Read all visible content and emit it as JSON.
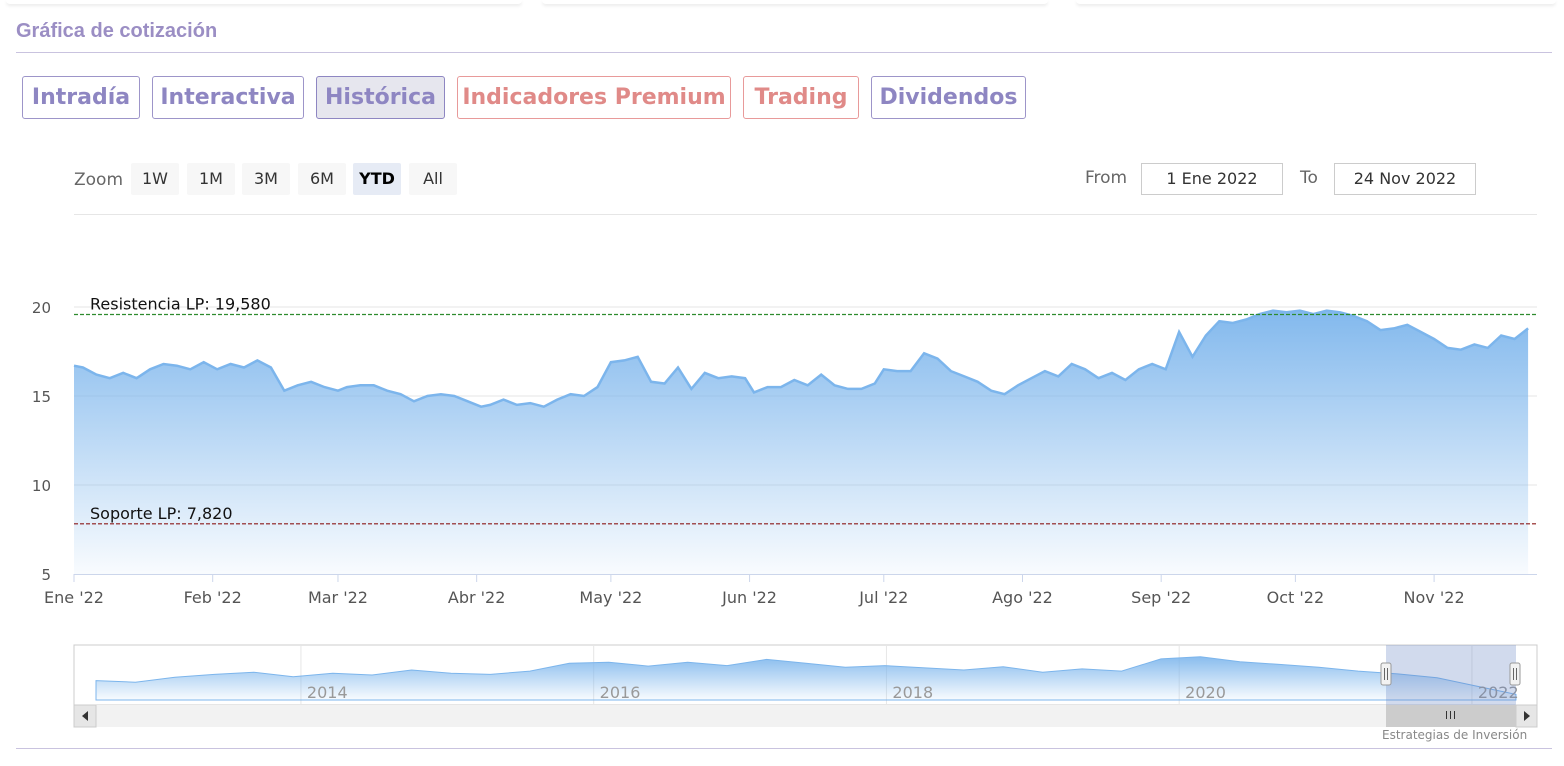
{
  "section_title": "Gráfica de cotización",
  "tabs": [
    {
      "label": "Intradía",
      "style": "normal"
    },
    {
      "label": "Interactiva",
      "style": "normal"
    },
    {
      "label": "Histórica",
      "style": "active"
    },
    {
      "label": "Indicadores Premium",
      "style": "premium"
    },
    {
      "label": "Trading",
      "style": "premium"
    },
    {
      "label": "Dividendos",
      "style": "normal"
    }
  ],
  "range_selector": {
    "zoom_label": "Zoom",
    "buttons": [
      "1W",
      "1M",
      "3M",
      "6M",
      "YTD",
      "All"
    ],
    "selected": "YTD",
    "from_label": "From",
    "from_value": "1 Ene 2022",
    "to_label": "To",
    "to_value": "24 Nov 2022"
  },
  "colors": {
    "accent": "#9b8ec4",
    "premium": "#e08a88",
    "series_line": "#7cb5ec",
    "resistance": "#2e8b2e",
    "support": "#8b1a1a"
  },
  "chart_data": {
    "type": "area",
    "title": "",
    "xlabel": "",
    "ylabel": "",
    "ylim": [
      5,
      20
    ],
    "yticks": [
      5,
      10,
      15,
      20
    ],
    "x_tick_labels": [
      "Ene '22",
      "Feb '22",
      "Mar '22",
      "Abr '22",
      "May '22",
      "Jun '22",
      "Jul '22",
      "Ago '22",
      "Sep '22",
      "Oct '22",
      "Nov '22"
    ],
    "x_range": [
      "2022-01-01",
      "2022-11-24"
    ],
    "grid": true,
    "legend": "none",
    "series": [
      {
        "values": [
          [
            "2022-01-01",
            16.7
          ],
          [
            "2022-01-03",
            16.6
          ],
          [
            "2022-01-06",
            16.2
          ],
          [
            "2022-01-09",
            16.0
          ],
          [
            "2022-01-12",
            16.3
          ],
          [
            "2022-01-15",
            16.0
          ],
          [
            "2022-01-18",
            16.5
          ],
          [
            "2022-01-21",
            16.8
          ],
          [
            "2022-01-24",
            16.7
          ],
          [
            "2022-01-27",
            16.5
          ],
          [
            "2022-01-30",
            16.9
          ],
          [
            "2022-02-02",
            16.5
          ],
          [
            "2022-02-05",
            16.8
          ],
          [
            "2022-02-08",
            16.6
          ],
          [
            "2022-02-11",
            17.0
          ],
          [
            "2022-02-14",
            16.6
          ],
          [
            "2022-02-17",
            15.3
          ],
          [
            "2022-02-20",
            15.6
          ],
          [
            "2022-02-23",
            15.8
          ],
          [
            "2022-02-26",
            15.5
          ],
          [
            "2022-03-01",
            15.3
          ],
          [
            "2022-03-03",
            15.5
          ],
          [
            "2022-03-06",
            15.6
          ],
          [
            "2022-03-09",
            15.6
          ],
          [
            "2022-03-12",
            15.3
          ],
          [
            "2022-03-15",
            15.1
          ],
          [
            "2022-03-18",
            14.7
          ],
          [
            "2022-03-21",
            15.0
          ],
          [
            "2022-03-24",
            15.1
          ],
          [
            "2022-03-27",
            15.0
          ],
          [
            "2022-03-30",
            14.7
          ],
          [
            "2022-04-02",
            14.4
          ],
          [
            "2022-04-04",
            14.5
          ],
          [
            "2022-04-07",
            14.8
          ],
          [
            "2022-04-10",
            14.5
          ],
          [
            "2022-04-13",
            14.6
          ],
          [
            "2022-04-16",
            14.4
          ],
          [
            "2022-04-19",
            14.8
          ],
          [
            "2022-04-22",
            15.1
          ],
          [
            "2022-04-25",
            15.0
          ],
          [
            "2022-04-28",
            15.5
          ],
          [
            "2022-05-01",
            16.9
          ],
          [
            "2022-05-04",
            17.0
          ],
          [
            "2022-05-07",
            17.2
          ],
          [
            "2022-05-10",
            15.8
          ],
          [
            "2022-05-13",
            15.7
          ],
          [
            "2022-05-16",
            16.6
          ],
          [
            "2022-05-19",
            15.4
          ],
          [
            "2022-05-22",
            16.3
          ],
          [
            "2022-05-25",
            16.0
          ],
          [
            "2022-05-28",
            16.1
          ],
          [
            "2022-05-31",
            16.0
          ],
          [
            "2022-06-02",
            15.2
          ],
          [
            "2022-06-05",
            15.5
          ],
          [
            "2022-06-08",
            15.5
          ],
          [
            "2022-06-11",
            15.9
          ],
          [
            "2022-06-14",
            15.6
          ],
          [
            "2022-06-17",
            16.2
          ],
          [
            "2022-06-20",
            15.6
          ],
          [
            "2022-06-23",
            15.4
          ],
          [
            "2022-06-26",
            15.4
          ],
          [
            "2022-06-29",
            15.7
          ],
          [
            "2022-07-01",
            16.5
          ],
          [
            "2022-07-04",
            16.4
          ],
          [
            "2022-07-07",
            16.4
          ],
          [
            "2022-07-10",
            17.4
          ],
          [
            "2022-07-13",
            17.1
          ],
          [
            "2022-07-16",
            16.4
          ],
          [
            "2022-07-19",
            16.1
          ],
          [
            "2022-07-22",
            15.8
          ],
          [
            "2022-07-25",
            15.3
          ],
          [
            "2022-07-28",
            15.1
          ],
          [
            "2022-07-31",
            15.6
          ],
          [
            "2022-08-03",
            16.0
          ],
          [
            "2022-08-06",
            16.4
          ],
          [
            "2022-08-09",
            16.1
          ],
          [
            "2022-08-12",
            16.8
          ],
          [
            "2022-08-15",
            16.5
          ],
          [
            "2022-08-18",
            16.0
          ],
          [
            "2022-08-21",
            16.3
          ],
          [
            "2022-08-24",
            15.9
          ],
          [
            "2022-08-27",
            16.5
          ],
          [
            "2022-08-30",
            16.8
          ],
          [
            "2022-09-02",
            16.5
          ],
          [
            "2022-09-05",
            18.6
          ],
          [
            "2022-09-08",
            17.2
          ],
          [
            "2022-09-11",
            18.4
          ],
          [
            "2022-09-14",
            19.2
          ],
          [
            "2022-09-17",
            19.1
          ],
          [
            "2022-09-20",
            19.3
          ],
          [
            "2022-09-23",
            19.6
          ],
          [
            "2022-09-26",
            19.8
          ],
          [
            "2022-09-29",
            19.7
          ],
          [
            "2022-10-02",
            19.8
          ],
          [
            "2022-10-05",
            19.6
          ],
          [
            "2022-10-08",
            19.8
          ],
          [
            "2022-10-11",
            19.7
          ],
          [
            "2022-10-14",
            19.5
          ],
          [
            "2022-10-17",
            19.2
          ],
          [
            "2022-10-20",
            18.7
          ],
          [
            "2022-10-23",
            18.8
          ],
          [
            "2022-10-26",
            19.0
          ],
          [
            "2022-10-29",
            18.6
          ],
          [
            "2022-11-01",
            18.2
          ],
          [
            "2022-11-04",
            17.7
          ],
          [
            "2022-11-07",
            17.6
          ],
          [
            "2022-11-10",
            17.9
          ],
          [
            "2022-11-13",
            17.7
          ],
          [
            "2022-11-16",
            18.4
          ],
          [
            "2022-11-19",
            18.2
          ],
          [
            "2022-11-22",
            18.8
          ]
        ]
      }
    ],
    "annotations": [
      {
        "label": "Resistencia LP: 19,580",
        "y": 19.58,
        "color": "#2e8b2e"
      },
      {
        "label": "Soporte LP: 7,820",
        "y": 7.82,
        "color": "#8b1a1a"
      }
    ],
    "navigator": {
      "x_labels": [
        "2014",
        "2016",
        "2018",
        "2020",
        "2022"
      ]
    },
    "credits": "Estrategias de Inversión"
  }
}
